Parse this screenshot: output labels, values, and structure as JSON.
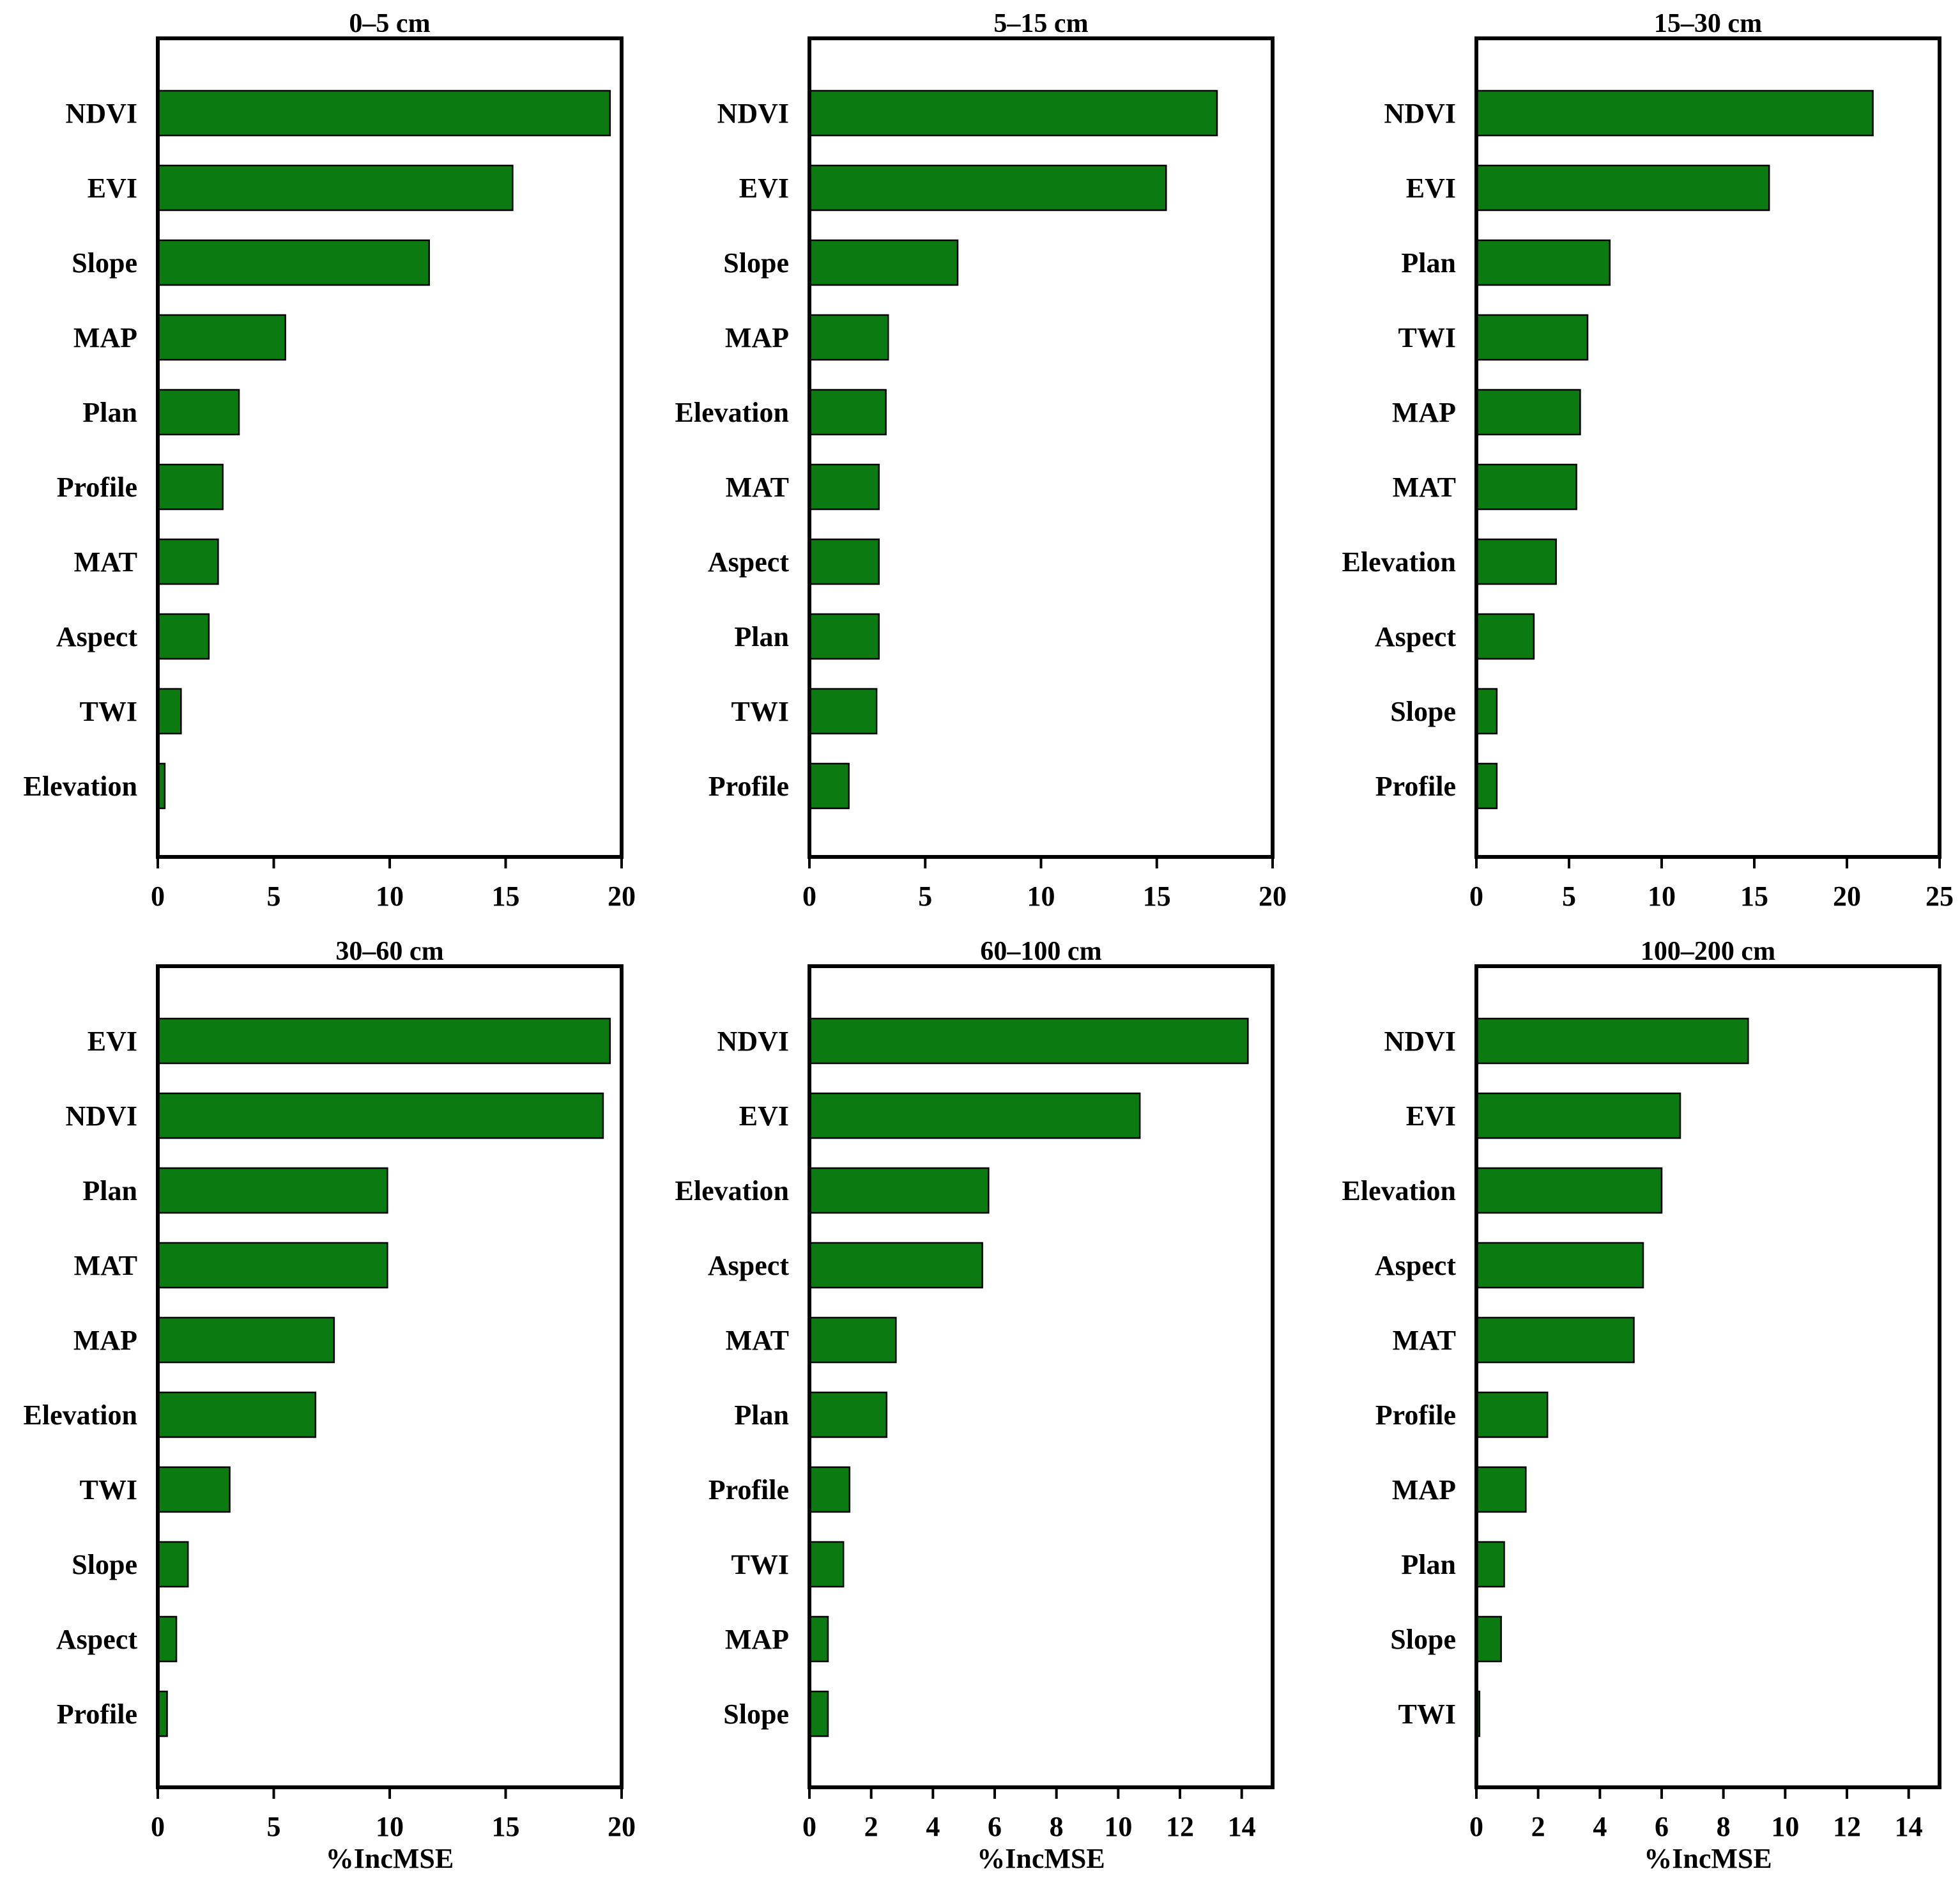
{
  "chart_data": [
    {
      "type": "bar",
      "orientation": "horizontal",
      "title": "0–5 cm",
      "xlabel": "",
      "categories": [
        "NDVI",
        "EVI",
        "Slope",
        "MAP",
        "Plan",
        "Profile",
        "MAT",
        "Aspect",
        "TWI",
        "Elevation"
      ],
      "values": [
        19.5,
        15.3,
        11.7,
        5.5,
        3.5,
        2.8,
        2.6,
        2.2,
        1.0,
        0.3
      ],
      "xlim": [
        0,
        20
      ],
      "xticks": [
        "0",
        "5",
        "10",
        "15",
        "20"
      ],
      "bar_color": "#0b7a11"
    },
    {
      "type": "bar",
      "orientation": "horizontal",
      "title": "5–15 cm",
      "xlabel": "",
      "categories": [
        "NDVI",
        "EVI",
        "Slope",
        "MAP",
        "Elevation",
        "MAT",
        "Aspect",
        "Plan",
        "TWI",
        "Profile"
      ],
      "values": [
        17.6,
        15.4,
        6.4,
        3.4,
        3.3,
        3.0,
        3.0,
        3.0,
        2.9,
        1.7
      ],
      "xlim": [
        0,
        20
      ],
      "xticks": [
        "0",
        "5",
        "10",
        "15",
        "20"
      ],
      "bar_color": "#0b7a11"
    },
    {
      "type": "bar",
      "orientation": "horizontal",
      "title": "15–30 cm",
      "xlabel": "",
      "categories": [
        "NDVI",
        "EVI",
        "Plan",
        "TWI",
        "MAP",
        "MAT",
        "Elevation",
        "Aspect",
        "Slope",
        "Profile"
      ],
      "values": [
        21.4,
        15.8,
        7.2,
        6.0,
        5.6,
        5.4,
        4.3,
        3.1,
        1.1,
        1.1
      ],
      "xlim": [
        0,
        25
      ],
      "xticks": [
        "0",
        "5",
        "10",
        "15",
        "20",
        "25"
      ],
      "bar_color": "#0b7a11"
    },
    {
      "type": "bar",
      "orientation": "horizontal",
      "title": "30–60 cm",
      "xlabel": "%IncMSE",
      "categories": [
        "EVI",
        "NDVI",
        "Plan",
        "MAT",
        "MAP",
        "Elevation",
        "TWI",
        "Slope",
        "Aspect",
        "Profile"
      ],
      "values": [
        19.5,
        19.2,
        9.9,
        9.9,
        7.6,
        6.8,
        3.1,
        1.3,
        0.8,
        0.4
      ],
      "xlim": [
        0,
        20
      ],
      "xticks": [
        "0",
        "5",
        "10",
        "15",
        "20"
      ],
      "bar_color": "#0b7a11"
    },
    {
      "type": "bar",
      "orientation": "horizontal",
      "title": "60–100 cm",
      "xlabel": "%IncMSE",
      "categories": [
        "NDVI",
        "EVI",
        "Elevation",
        "Aspect",
        "MAT",
        "Plan",
        "Profile",
        "TWI",
        "MAP",
        "Slope"
      ],
      "values": [
        14.2,
        10.7,
        5.8,
        5.6,
        2.8,
        2.5,
        1.3,
        1.1,
        0.6,
        0.6
      ],
      "xlim": [
        0,
        15
      ],
      "xticks": [
        "0",
        "2",
        "4",
        "6",
        "8",
        "10",
        "12",
        "14"
      ],
      "bar_color": "#0b7a11"
    },
    {
      "type": "bar",
      "orientation": "horizontal",
      "title": "100–200 cm",
      "xlabel": "%IncMSE",
      "categories": [
        "NDVI",
        "EVI",
        "Elevation",
        "Aspect",
        "MAT",
        "Profile",
        "MAP",
        "Plan",
        "Slope",
        "TWI"
      ],
      "values": [
        8.8,
        6.6,
        6.0,
        5.4,
        5.1,
        2.3,
        1.6,
        0.9,
        0.8,
        0.1
      ],
      "xlim": [
        0,
        15
      ],
      "xticks": [
        "0",
        "2",
        "4",
        "6",
        "8",
        "10",
        "12",
        "14"
      ],
      "bar_color": "#0b7a11"
    }
  ]
}
